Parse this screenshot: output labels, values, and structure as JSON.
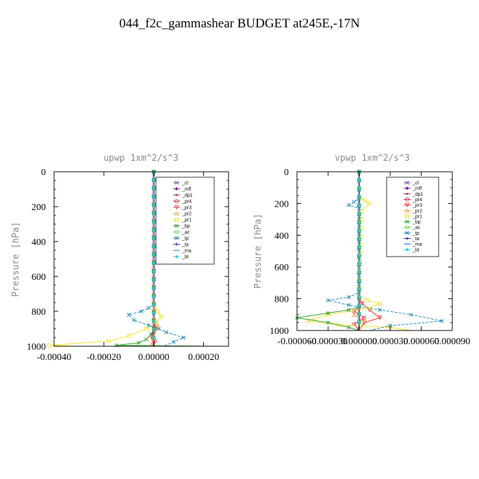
{
  "page_title": "044_f2c_gammashear  BUDGET at245E,-17N",
  "chart_data": [
    {
      "type": "line",
      "title": "upwp   1xm^2/s^3",
      "ylabel": "Pressure [hPa]",
      "xlabel": "",
      "xlim": [
        -0.0004,
        0.0003
      ],
      "ylim": [
        1000,
        0
      ],
      "x_ticks": [
        "-0.00040",
        "-0.00020",
        "0.00000",
        "0.00020"
      ],
      "x_tick_values": [
        -0.0004,
        -0.0002,
        0.0,
        0.0002
      ],
      "y_ticks": [
        "0",
        "200",
        "400",
        "600",
        "800",
        "1000"
      ],
      "y_tick_values": [
        0,
        200,
        400,
        600,
        800,
        1000
      ],
      "legend_position": "top-right",
      "series": [
        {
          "name": "_cl",
          "color": "#7b5ea7",
          "marker": "x",
          "points": [
            [
              0,
              0
            ],
            [
              0,
              1000
            ]
          ]
        },
        {
          "name": "_mfl",
          "color": "#7a0da0",
          "marker": "diamond",
          "points": [
            [
              0,
              0
            ],
            [
              0,
              1000
            ]
          ]
        },
        {
          "name": "_dp1",
          "color": "#a0102a",
          "marker": "dot",
          "points": [
            [
              0,
              0
            ],
            [
              0,
              1000
            ]
          ]
        },
        {
          "name": "_pr4",
          "color": "#d01c3c",
          "marker": "circle",
          "points": [
            [
              0,
              0
            ],
            [
              0,
              850
            ],
            [
              5e-06,
              900
            ],
            [
              -1e-05,
              940
            ],
            [
              5e-06,
              970
            ],
            [
              0,
              1000
            ]
          ]
        },
        {
          "name": "_pr3",
          "color": "#ff2020",
          "marker": "triangle-down",
          "points": [
            [
              0,
              0
            ],
            [
              0,
              850
            ],
            [
              1e-05,
              900
            ],
            [
              -5e-06,
              960
            ],
            [
              0,
              1000
            ]
          ]
        },
        {
          "name": "_pr2",
          "color": "#ffa040",
          "marker": "triangle-up",
          "points": [
            [
              0,
              0
            ],
            [
              0,
              840
            ],
            [
              1.5e-05,
              880
            ],
            [
              0,
              950
            ],
            [
              -1e-05,
              990
            ],
            [
              0,
              1000
            ]
          ]
        },
        {
          "name": "_pr1",
          "color": "#f0e020",
          "marker": "square",
          "points": [
            [
              0,
              0
            ],
            [
              0,
              760
            ],
            [
              5e-06,
              780
            ],
            [
              1.5e-05,
              800
            ],
            [
              3e-05,
              830
            ],
            [
              1e-05,
              860
            ],
            [
              -3e-05,
              900
            ],
            [
              -0.0001,
              940
            ],
            [
              -0.00018,
              970
            ],
            [
              -0.00042,
              995
            ],
            [
              -0.0003,
              1000
            ]
          ]
        },
        {
          "name": "_bp",
          "color": "#22a022",
          "marker": "x",
          "points": [
            [
              0,
              0
            ],
            [
              0,
              900
            ],
            [
              -1e-05,
              930
            ],
            [
              -3e-05,
              960
            ],
            [
              -6e-05,
              980
            ],
            [
              -0.00015,
              995
            ],
            [
              0.00026,
              1000
            ]
          ]
        },
        {
          "name": "_ac",
          "color": "#60d040",
          "marker": "circle",
          "points": [
            [
              0,
              0
            ],
            [
              0,
              1000
            ]
          ]
        },
        {
          "name": "_tp",
          "color": "#1a88b8",
          "marker": "x",
          "points": [
            [
              0,
              0
            ],
            [
              0,
              760
            ],
            [
              -2e-05,
              780
            ],
            [
              -5e-05,
              800
            ],
            [
              -0.0001,
              820
            ],
            [
              -8e-05,
              850
            ],
            [
              -2e-05,
              880
            ],
            [
              2e-05,
              900
            ],
            [
              5e-05,
              920
            ],
            [
              0.00012,
              950
            ],
            [
              8e-05,
              975
            ],
            [
              4e-05,
              1000
            ]
          ]
        },
        {
          "name": "_ta",
          "color": "#1010a0",
          "marker": "plus",
          "points": [
            [
              0,
              0
            ],
            [
              0,
              1000
            ]
          ]
        },
        {
          "name": "_ma",
          "color": "#2070d0",
          "marker": "dash",
          "points": [
            [
              0,
              0
            ],
            [
              0,
              1000
            ]
          ]
        },
        {
          "name": "_bt",
          "color": "#20d0e0",
          "marker": "diamond",
          "points": [
            [
              0,
              0
            ],
            [
              0,
              1000
            ]
          ]
        }
      ]
    },
    {
      "type": "line",
      "title": "vpwp   1xm^2/s^3",
      "ylabel": "Pressure [hPa]",
      "xlabel": "",
      "xlim": [
        -6e-05,
        9e-05
      ],
      "ylim": [
        1000,
        0
      ],
      "x_ticks": [
        "-0.000060",
        "-0.000030",
        "0.000000",
        "0.000030",
        "0.000060",
        "0.000090"
      ],
      "x_tick_values": [
        -6e-05,
        -3e-05,
        0.0,
        3e-05,
        6e-05,
        9e-05
      ],
      "y_ticks": [
        "0",
        "200",
        "400",
        "600",
        "800",
        "1000"
      ],
      "y_tick_values": [
        0,
        200,
        400,
        600,
        800,
        1000
      ],
      "legend_position": "top-right",
      "series": [
        {
          "name": "_cl",
          "color": "#7b5ea7",
          "marker": "x",
          "points": [
            [
              0,
              0
            ],
            [
              0,
              1000
            ]
          ]
        },
        {
          "name": "_mfl",
          "color": "#7a0da0",
          "marker": "diamond",
          "points": [
            [
              0,
              0
            ],
            [
              0,
              1000
            ]
          ]
        },
        {
          "name": "_dp1",
          "color": "#a0102a",
          "marker": "dot",
          "points": [
            [
              0,
              0
            ],
            [
              0,
              1000
            ]
          ]
        },
        {
          "name": "_pr4",
          "color": "#d01c3c",
          "marker": "circle",
          "points": [
            [
              0,
              0
            ],
            [
              0,
              850
            ],
            [
              -5e-06,
              880
            ],
            [
              5e-06,
              920
            ],
            [
              -5e-06,
              960
            ],
            [
              0,
              1000
            ]
          ]
        },
        {
          "name": "_pr3",
          "color": "#ff2020",
          "marker": "triangle-down",
          "points": [
            [
              0,
              0
            ],
            [
              0,
              800
            ],
            [
              3e-06,
              830
            ],
            [
              1e-05,
              870
            ],
            [
              2e-05,
              920
            ],
            [
              5e-06,
              950
            ],
            [
              0,
              1000
            ]
          ]
        },
        {
          "name": "_pr2",
          "color": "#ffa040",
          "marker": "triangle-up",
          "points": [
            [
              0,
              0
            ],
            [
              0,
              850
            ],
            [
              -5e-06,
              900
            ],
            [
              5e-06,
              940
            ],
            [
              0,
              1000
            ]
          ]
        },
        {
          "name": "_pr1",
          "color": "#f0e020",
          "marker": "square",
          "points": [
            [
              0,
              0
            ],
            [
              0,
              160
            ],
            [
              5e-06,
              180
            ],
            [
              1e-05,
              200
            ],
            [
              2e-06,
              250
            ],
            [
              0,
              780
            ],
            [
              8e-06,
              810
            ],
            [
              2e-05,
              830
            ],
            [
              1e-05,
              860
            ],
            [
              -3e-05,
              900
            ],
            [
              -5e-05,
              940
            ],
            [
              -2e-05,
              965
            ],
            [
              3e-05,
              980
            ],
            [
              5e-05,
              1000
            ]
          ]
        },
        {
          "name": "_bp",
          "color": "#22a022",
          "marker": "x",
          "points": [
            [
              0,
              0
            ],
            [
              0,
              850
            ],
            [
              -1e-05,
              870
            ],
            [
              -3e-05,
              890
            ],
            [
              -6e-05,
              920
            ],
            [
              -3e-05,
              950
            ],
            [
              -1e-05,
              980
            ],
            [
              0,
              1000
            ]
          ]
        },
        {
          "name": "_ac",
          "color": "#60d040",
          "marker": "circle",
          "points": [
            [
              0,
              0
            ],
            [
              0,
              1000
            ]
          ]
        },
        {
          "name": "_tp",
          "color": "#1a88b8",
          "marker": "x",
          "points": [
            [
              0,
              0
            ],
            [
              0,
              170
            ],
            [
              -5e-06,
              190
            ],
            [
              -1e-05,
              210
            ],
            [
              0,
              230
            ],
            [
              0,
              760
            ],
            [
              -1e-05,
              790
            ],
            [
              -3e-05,
              810
            ],
            [
              -1e-05,
              840
            ],
            [
              2e-05,
              870
            ],
            [
              5e-05,
              900
            ],
            [
              8e-05,
              940
            ],
            [
              3e-05,
              970
            ],
            [
              1e-05,
              1000
            ]
          ]
        },
        {
          "name": "_ta",
          "color": "#1010a0",
          "marker": "plus",
          "points": [
            [
              0,
              0
            ],
            [
              0,
              1000
            ]
          ]
        },
        {
          "name": "_ma",
          "color": "#2070d0",
          "marker": "dash",
          "points": [
            [
              0,
              0
            ],
            [
              0,
              1000
            ]
          ]
        },
        {
          "name": "_bt",
          "color": "#20d0e0",
          "marker": "diamond",
          "points": [
            [
              0,
              0
            ],
            [
              0,
              1000
            ]
          ]
        }
      ]
    }
  ]
}
